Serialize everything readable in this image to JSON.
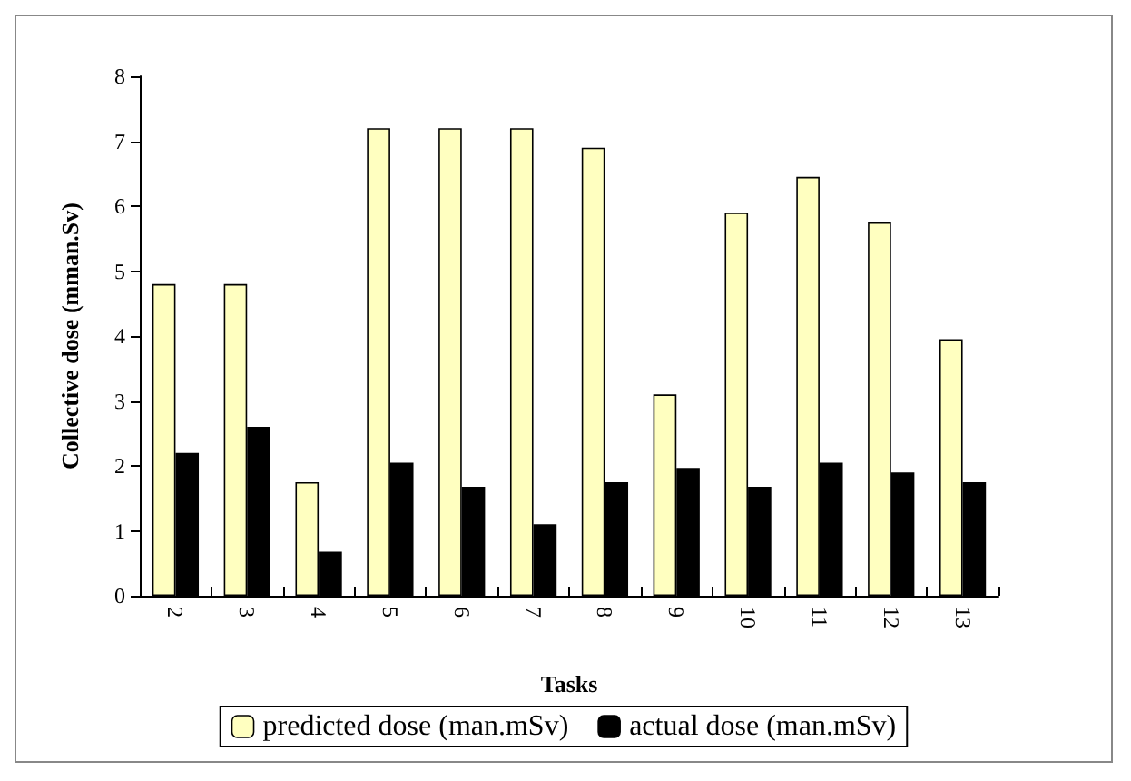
{
  "chart_data": {
    "type": "bar",
    "xlabel": "Tasks",
    "ylabel": "Collective dose (mman.Sv)",
    "categories": [
      "2",
      "3",
      "4",
      "5",
      "6",
      "7",
      "8",
      "9",
      "10",
      "11",
      "12",
      "13"
    ],
    "series": [
      {
        "name": "predicted dose (man.mSv)",
        "color": "#ffffc0",
        "values": [
          4.8,
          4.8,
          1.75,
          7.2,
          7.2,
          7.2,
          6.9,
          3.1,
          5.9,
          6.45,
          5.75,
          3.95
        ]
      },
      {
        "name": "actual dose (man.mSv)",
        "color": "#000000",
        "values": [
          2.2,
          2.6,
          0.68,
          2.05,
          1.68,
          1.1,
          1.75,
          1.97,
          1.68,
          2.05,
          1.9,
          1.75
        ]
      }
    ],
    "ylim": [
      0,
      8
    ],
    "yticks": [
      0,
      1,
      2,
      3,
      4,
      5,
      6,
      7,
      8
    ],
    "grid": false,
    "legend": "bottom"
  }
}
